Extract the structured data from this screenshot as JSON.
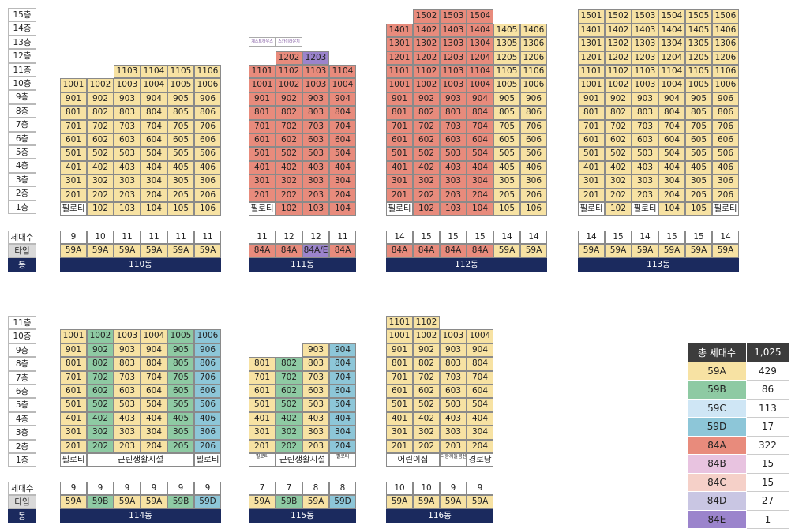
{
  "floors_top": [
    "15층",
    "14층",
    "13층",
    "12층",
    "11층",
    "10층",
    "9층",
    "8층",
    "7층",
    "6층",
    "5층",
    "4층",
    "3층",
    "2층",
    "1층"
  ],
  "floors_bot": [
    "11층",
    "10층",
    "9층",
    "8층",
    "7층",
    "6층",
    "5층",
    "4층",
    "3층",
    "2층",
    "1층"
  ],
  "row_labels": {
    "households": "세대수",
    "type": "타입",
    "building": "동"
  },
  "buildings": {
    "b110": {
      "name": "110동",
      "counts": [
        "9",
        "10",
        "11",
        "11",
        "11",
        "11"
      ],
      "types": [
        "59A",
        "59A",
        "59A",
        "59A",
        "59A",
        "59A"
      ]
    },
    "b111": {
      "name": "111동",
      "counts": [
        "11",
        "12",
        "12",
        "11"
      ],
      "types": [
        "84A",
        "84A",
        "84A/E",
        "84A"
      ],
      "tag1": "게스트하우스",
      "tag2": "스카이라운지"
    },
    "b112": {
      "name": "112동",
      "counts": [
        "14",
        "15",
        "15",
        "15",
        "14",
        "14"
      ],
      "types": [
        "84A",
        "84A",
        "84A",
        "84A",
        "59A",
        "59A"
      ]
    },
    "b113": {
      "name": "113동",
      "counts": [
        "14",
        "15",
        "14",
        "15",
        "15",
        "14"
      ],
      "types": [
        "59A",
        "59A",
        "59A",
        "59A",
        "59A",
        "59A"
      ]
    },
    "b114": {
      "name": "114동",
      "counts": [
        "9",
        "9",
        "9",
        "9",
        "9",
        "9"
      ],
      "types": [
        "59A",
        "59B",
        "59A",
        "59A",
        "59B",
        "59D"
      ],
      "ground": [
        "필로티",
        "근린생활시설",
        "필로티"
      ]
    },
    "b115": {
      "name": "115동",
      "counts": [
        "7",
        "7",
        "8",
        "8"
      ],
      "types": [
        "59A",
        "59B",
        "59A",
        "59D"
      ],
      "ground": [
        "필로티",
        "근린생활시설",
        "필로티"
      ]
    },
    "b116": {
      "name": "116동",
      "counts": [
        "10",
        "10",
        "9",
        "9"
      ],
      "types": [
        "59A",
        "59A",
        "59A",
        "59A"
      ],
      "ground": [
        "어린이집",
        "다함께돌봄센터",
        "경로당"
      ]
    }
  },
  "pilotis": "필로티",
  "legend": {
    "total_label": "총 세대수",
    "total": "1,025",
    "rows": [
      {
        "type": "59A",
        "count": "429",
        "color": "#f7e2a3"
      },
      {
        "type": "59B",
        "count": "86",
        "color": "#8ecaa3"
      },
      {
        "type": "59C",
        "count": "113",
        "color": "#cfe6f5"
      },
      {
        "type": "59D",
        "count": "17",
        "color": "#8dc6d8"
      },
      {
        "type": "84A",
        "count": "322",
        "color": "#e88b7c"
      },
      {
        "type": "84B",
        "count": "15",
        "color": "#e8c3e0"
      },
      {
        "type": "84C",
        "count": "15",
        "color": "#f5d0c8"
      },
      {
        "type": "84D",
        "count": "27",
        "color": "#c9c6e3"
      },
      {
        "type": "84E",
        "count": "1",
        "color": "#9b84cc"
      }
    ]
  }
}
